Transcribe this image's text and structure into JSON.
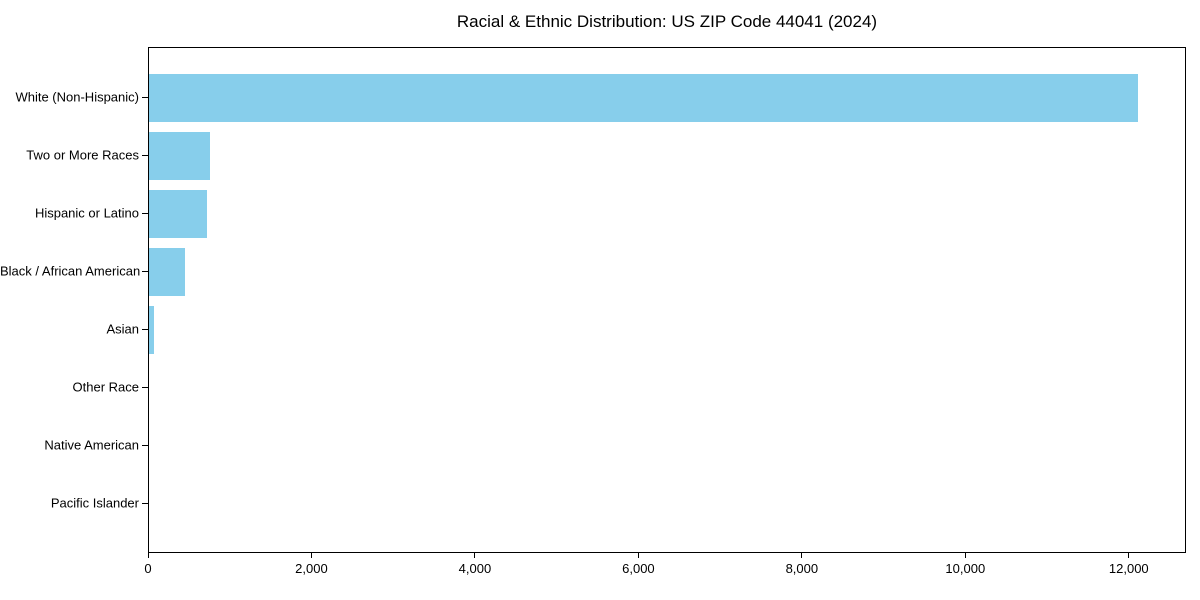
{
  "chart_data": {
    "type": "bar",
    "orientation": "horizontal",
    "title": "Racial & Ethnic Distribution: US ZIP Code 44041 (2024)",
    "categories": [
      "White (Non-Hispanic)",
      "Two or More Races",
      "Hispanic or Latino",
      "Black / African American",
      "Asian",
      "Other Race",
      "Native American",
      "Pacific Islander"
    ],
    "values": [
      12100,
      745,
      715,
      435,
      55,
      0,
      0,
      0
    ],
    "xlabel": "",
    "ylabel": "",
    "xlim": [
      0,
      12700
    ],
    "xticks": [
      0,
      2000,
      4000,
      6000,
      8000,
      10000,
      12000
    ],
    "xtick_labels": [
      "0",
      "2,000",
      "4,000",
      "6,000",
      "8,000",
      "10,000",
      "12,000"
    ],
    "bar_color": "#87CEEB",
    "background_color": "#ffffff",
    "axis_color": "#000000",
    "grid": false,
    "legend": null
  }
}
